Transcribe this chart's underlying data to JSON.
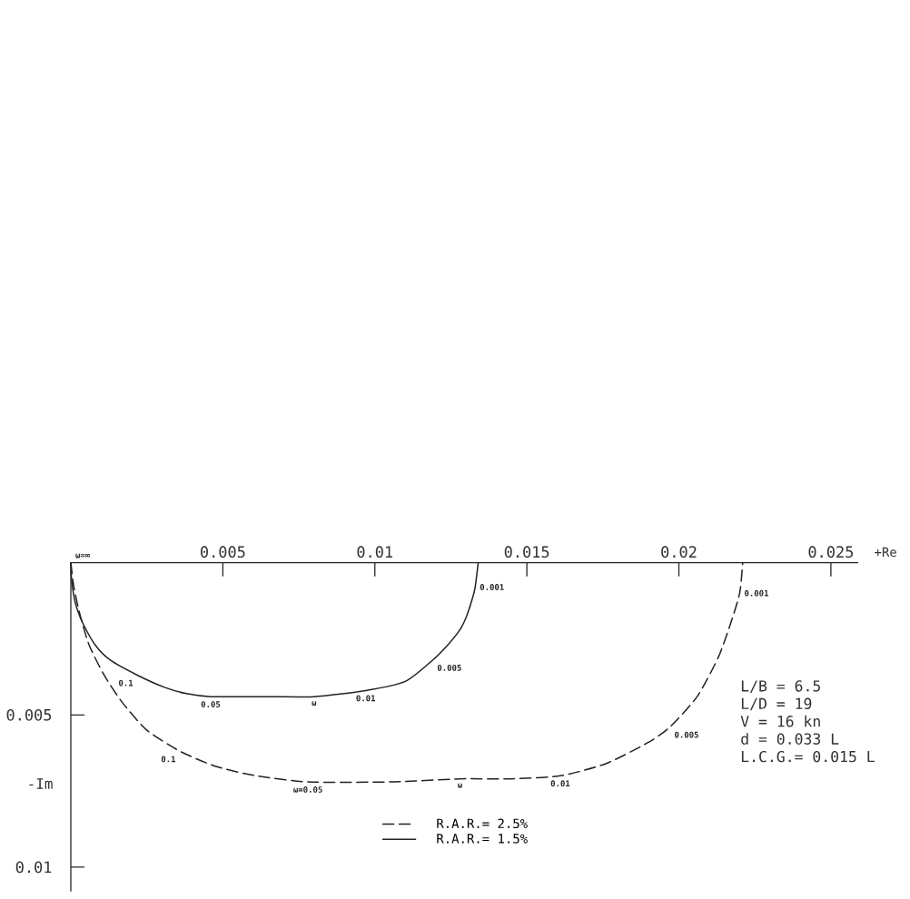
{
  "chart_data": {
    "type": "line",
    "xlabel": "+Re",
    "ylabel": "-Im",
    "xlim": [
      0,
      0.0259
    ],
    "ylim": [
      0.0108,
      0
    ],
    "xticks": [
      0.005,
      0.01,
      0.015,
      0.02,
      0.025
    ],
    "yticks": [
      0.005,
      0.01
    ],
    "legend": "bottom",
    "series": [
      {
        "name": "R.A.R.= 2.5%",
        "color": "#222222",
        "line_style": "dashed",
        "x": [
          0,
          0.0001,
          0.0003,
          0.0006,
          0.0011,
          0.0017,
          0.0025,
          0.0036,
          0.0048,
          0.0061,
          0.0078,
          0.0106,
          0.0128,
          0.0145,
          0.0161,
          0.0176,
          0.019,
          0.0197,
          0.0206,
          0.0213,
          0.0217,
          0.022,
          0.0221
        ],
        "values": [
          0,
          0.0008,
          0.0017,
          0.0027,
          0.0037,
          0.0046,
          0.0055,
          0.0062,
          0.0067,
          0.007,
          0.0072,
          0.0072,
          0.0071,
          0.0071,
          0.007,
          0.0066,
          0.0059,
          0.0054,
          0.0044,
          0.0031,
          0.002,
          0.001,
          0
        ]
      },
      {
        "name": "R.A.R.= 1.5%",
        "color": "#222222",
        "line_style": "solid",
        "x": [
          0,
          2e-05,
          0.0001,
          0.0002,
          0.0004,
          0.0008,
          0.0013,
          0.0022,
          0.0031,
          0.0038,
          0.0046,
          0.0065,
          0.008,
          0.0097,
          0.011,
          0.0119,
          0.0124,
          0.0128,
          0.013,
          0.0132,
          0.0133,
          0.0134
        ],
        "values": [
          0,
          0.0005,
          0.0011,
          0.0015,
          0.002,
          0.0027,
          0.0032,
          0.0037,
          0.0041,
          0.0043,
          0.0044,
          0.0044,
          0.0044,
          0.0042,
          0.0039,
          0.0032,
          0.0027,
          0.0022,
          0.0018,
          0.0012,
          0.0008,
          0
        ]
      }
    ],
    "annotations": [
      {
        "text": "ω=∞",
        "x": 0,
        "y": 0
      },
      {
        "text": "0.1",
        "x": 0.0022,
        "y": 0.0037
      },
      {
        "text": "0.05",
        "x": 0.0046,
        "y": 0.0044
      },
      {
        "text": "ω",
        "x": 0.008,
        "y": 0.0044
      },
      {
        "text": "0.01",
        "x": 0.0097,
        "y": 0.0042
      },
      {
        "text": "0.005",
        "x": 0.0119,
        "y": 0.0032
      },
      {
        "text": "0.001",
        "x": 0.0133,
        "y": 0.0008
      },
      {
        "text": "0.1",
        "x": 0.0036,
        "y": 0.0062
      },
      {
        "text": "ω=0.05",
        "x": 0.0078,
        "y": 0.0072
      },
      {
        "text": "ω",
        "x": 0.0128,
        "y": 0.0071
      },
      {
        "text": "0.01",
        "x": 0.0161,
        "y": 0.007
      },
      {
        "text": "0.005",
        "x": 0.0197,
        "y": 0.0054
      },
      {
        "text": "0.001",
        "x": 0.022,
        "y": 0.001
      },
      "L/B = 6.5",
      "L/D = 19",
      "V = 16 kn",
      "d = 0.033 L",
      "L.C.G.= 0.015 L"
    ]
  }
}
